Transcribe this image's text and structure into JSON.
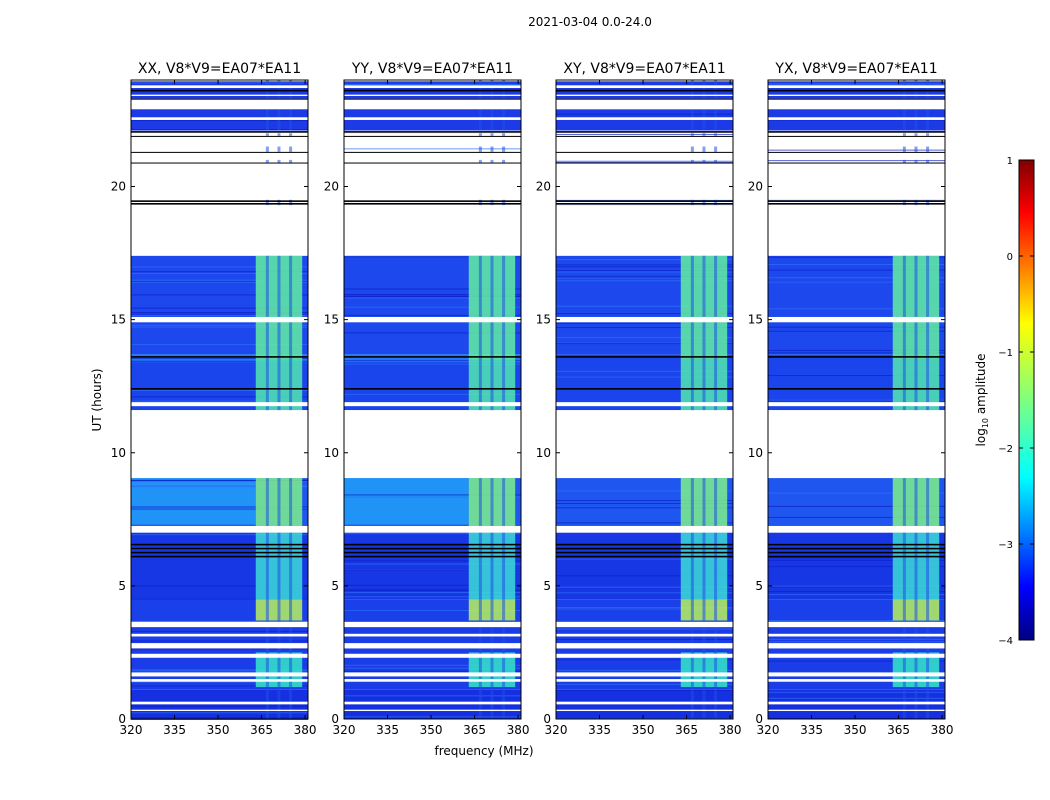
{
  "figure_title": "2021-03-04 0.0-24.0",
  "chart_data": {
    "type": "heatmap",
    "suptitle": "2021-03-04 0.0-24.0",
    "xlabel": "frequency (MHz)",
    "ylabel": "UT (hours)",
    "xlim": [
      320,
      381
    ],
    "ylim": [
      0,
      24
    ],
    "xticks": [
      320,
      335,
      350,
      365,
      380
    ],
    "yticks": [
      0,
      5,
      10,
      15,
      20
    ],
    "panels": [
      {
        "title": "XX, V8*V9=EA07*EA11",
        "pol": "XX"
      },
      {
        "title": "YY, V8*V9=EA07*EA11",
        "pol": "YY"
      },
      {
        "title": "XY, V8*V9=EA07*EA11",
        "pol": "XY"
      },
      {
        "title": "YX, V8*V9=EA07*EA11",
        "pol": "YX"
      }
    ],
    "bright_band_mhz": [
      363,
      379
    ],
    "flagged_ut_ranges": [
      [
        0.3,
        0.35
      ],
      [
        0.55,
        0.65
      ],
      [
        1.4,
        1.5
      ],
      [
        1.6,
        1.75
      ],
      [
        2.3,
        2.45
      ],
      [
        2.65,
        2.85
      ],
      [
        3.1,
        3.2
      ],
      [
        3.45,
        3.65
      ],
      [
        7.0,
        7.25
      ],
      [
        9.05,
        11.6
      ],
      [
        11.75,
        11.9
      ],
      [
        14.9,
        15.1
      ],
      [
        17.4,
        19.3
      ],
      [
        19.5,
        20.9
      ],
      [
        21.0,
        21.3
      ],
      [
        21.5,
        21.9
      ],
      [
        22.0,
        22.1
      ],
      [
        22.5,
        22.6
      ],
      [
        22.9,
        23.3
      ],
      [
        23.4,
        23.45
      ],
      [
        23.7,
        23.8
      ]
    ],
    "dark_ut_lines": [
      6.1,
      6.25,
      6.4,
      6.55,
      12.4,
      13.6,
      19.35,
      19.45,
      22.05,
      23.6
    ],
    "colorbar": {
      "label": "log₁₀ amplitude",
      "label_base": "log",
      "label_sub": "10",
      "label_rest": " amplitude",
      "range": [
        -4,
        1
      ],
      "ticks": [
        "1",
        "0",
        "−1",
        "−2",
        "−3",
        "−4"
      ],
      "colors": [
        "#00007f",
        "#0000ff",
        "#007fff",
        "#00ffff",
        "#7fff7f",
        "#ffff00",
        "#ff7f00",
        "#ff0000",
        "#7f0000"
      ]
    }
  }
}
